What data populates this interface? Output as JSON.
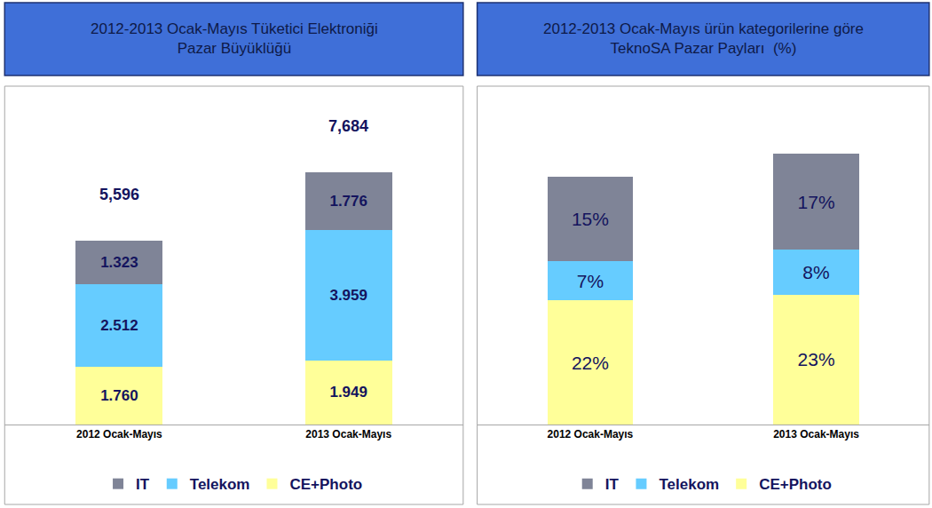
{
  "chart_data": [
    {
      "type": "bar",
      "title": "2012-2013 Ocak-Mayıs Tüketici Elektroniği\nPazar Büyüklüğü",
      "categories": [
        "2012 Ocak-Mayıs",
        "2013 Ocak-Mayıs"
      ],
      "series": [
        {
          "name": "IT",
          "color": "#7f8497",
          "values": [
            1323,
            1776
          ],
          "value_labels": [
            "1.323",
            "1.776"
          ]
        },
        {
          "name": "Telekom",
          "color": "#66ccff",
          "values": [
            2512,
            3959
          ],
          "value_labels": [
            "2.512",
            "3.959"
          ]
        },
        {
          "name": "CE+Photo",
          "color": "#ffff99",
          "values": [
            1760,
            1949
          ],
          "value_labels": [
            "1.760",
            "1.949"
          ]
        }
      ],
      "totals": [
        5596,
        7684
      ],
      "total_labels": [
        "5,596",
        "7,684"
      ],
      "ylim": [
        0,
        10300
      ],
      "stacked": true,
      "data_labels": true,
      "legend": "bottom",
      "tick_labels": "x",
      "grid": false
    },
    {
      "type": "bar",
      "title": "2012-2013 Ocak-Mayıs ürün kategorilerine göre\nTeknoSA Pazar Payları  (%)",
      "categories": [
        "2012 Ocak-Mayıs",
        "2013 Ocak-Mayıs"
      ],
      "series": [
        {
          "name": "IT",
          "color": "#7f8497",
          "values": [
            15,
            17
          ],
          "value_labels": [
            "15%",
            "17%"
          ]
        },
        {
          "name": "Telekom",
          "color": "#66ccff",
          "values": [
            7,
            8
          ],
          "value_labels": [
            "7%",
            "8%"
          ]
        },
        {
          "name": "CE+Photo",
          "color": "#ffff99",
          "values": [
            22,
            23
          ],
          "value_labels": [
            "22%",
            "23%"
          ]
        }
      ],
      "ylim": [
        0,
        60
      ],
      "stacked": true,
      "data_labels": true,
      "legend": "bottom",
      "tick_labels": "x",
      "grid": false
    }
  ]
}
